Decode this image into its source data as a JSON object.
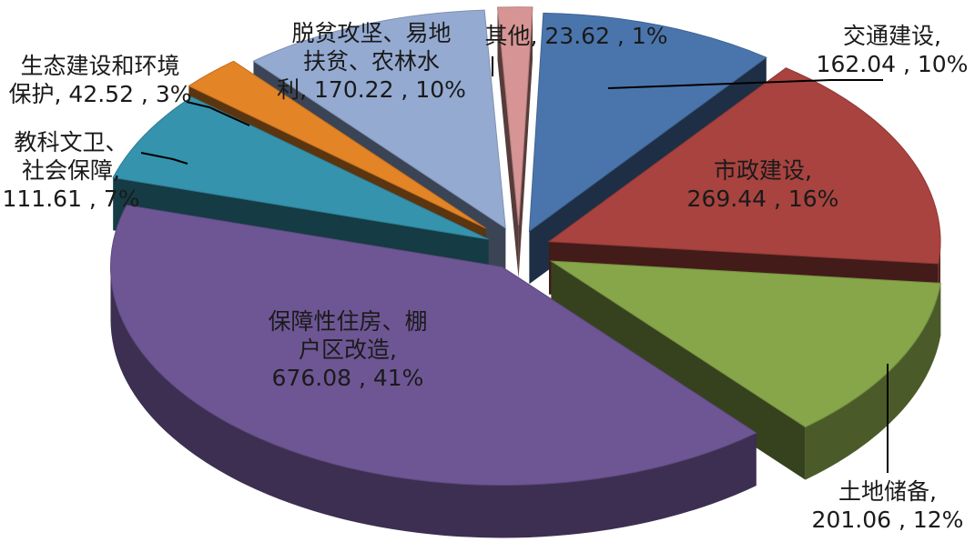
{
  "chart_data": {
    "type": "pie",
    "style": "3d-exploded",
    "title": "",
    "slices": [
      {
        "label": "交通建设",
        "value": 162.04,
        "percent": "10%",
        "color": "#4A75AC",
        "label_lines": [
          "交通建设,",
          "162.04 , 10%"
        ]
      },
      {
        "label": "市政建设",
        "value": 269.44,
        "percent": "16%",
        "color": "#A8433F",
        "label_lines": [
          "市政建设,",
          "269.44 , 16%"
        ]
      },
      {
        "label": "土地储备",
        "value": 201.06,
        "percent": "12%",
        "color": "#87A64A",
        "label_lines": [
          "土地储备,",
          "201.06 , 12%"
        ]
      },
      {
        "label": "保障性住房、棚户区改造",
        "value": 676.08,
        "percent": "41%",
        "color": "#6E5694",
        "label_lines": [
          "保障性住房、棚",
          "户区改造,",
          "676.08 , 41%"
        ]
      },
      {
        "label": "教科文卫、社会保障",
        "value": 111.61,
        "percent": "7%",
        "color": "#3593AD",
        "label_lines": [
          "教科文卫、",
          "社会保障,",
          "111.61 , 7%"
        ]
      },
      {
        "label": "生态建设和环境保护",
        "value": 42.52,
        "percent": "3%",
        "color": "#E38426",
        "label_lines": [
          "生态建设和环境",
          "保护, 42.52 , 3%"
        ]
      },
      {
        "label": "脱贫攻坚、易地扶贫、农林水利",
        "value": 170.22,
        "percent": "10%",
        "color": "#94AAD1",
        "label_lines": [
          "脱贫攻坚、易地",
          "扶贫、农林水",
          "利, 170.22 , 10%"
        ]
      },
      {
        "label": "其他",
        "value": 23.62,
        "percent": "1%",
        "color": "#D69594",
        "label_lines": [
          "其他, 23.62 , 1%"
        ]
      }
    ],
    "legend": "none",
    "labels_show": "category, value, percent"
  }
}
